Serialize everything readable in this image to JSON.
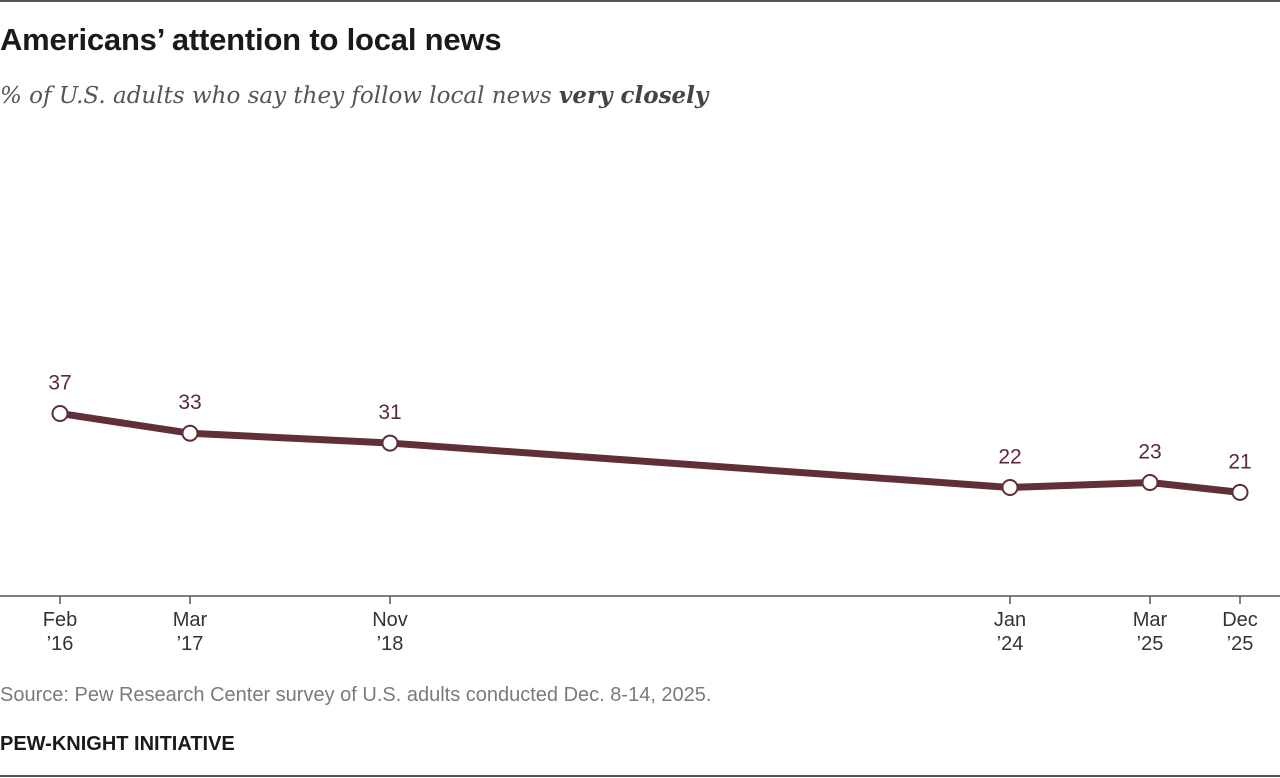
{
  "header": {
    "title": "Americans’ attention to local news",
    "subtitle_prefix": "% of U.S. adults who say they follow local news ",
    "subtitle_emphasis": "very closely"
  },
  "footer": {
    "source": "Source: Pew Research Center survey of U.S. adults conducted Dec. 8-14, 2025.",
    "org": "PEW-KNIGHT INITIATIVE"
  },
  "colors": {
    "line": "#612f37",
    "marker_fill": "#ffffff",
    "axis": "#555555",
    "label": "#5c2a33"
  },
  "chart_data": {
    "type": "line",
    "title": "Americans’ attention to local news",
    "subtitle": "% of U.S. adults who say they follow local news very closely",
    "x_type": "date",
    "x": [
      "2016-02",
      "2017-03",
      "2018-11",
      "2024-01",
      "2025-03",
      "2025-12"
    ],
    "x_tick_labels": [
      [
        "Feb",
        "’16"
      ],
      [
        "Mar",
        "’17"
      ],
      [
        "Nov",
        "’18"
      ],
      [
        "Jan",
        "’24"
      ],
      [
        "Mar",
        "’25"
      ],
      [
        "Dec",
        "’25"
      ]
    ],
    "series": [
      {
        "values": [
          37,
          33,
          31,
          22,
          23,
          21
        ]
      }
    ],
    "data_labels": [
      "37",
      "33",
      "31",
      "22",
      "23",
      "21"
    ],
    "ylim": [
      0,
      75
    ],
    "y_axis_visible": false,
    "grid": false,
    "legend": "none",
    "markers": "open-circle"
  }
}
